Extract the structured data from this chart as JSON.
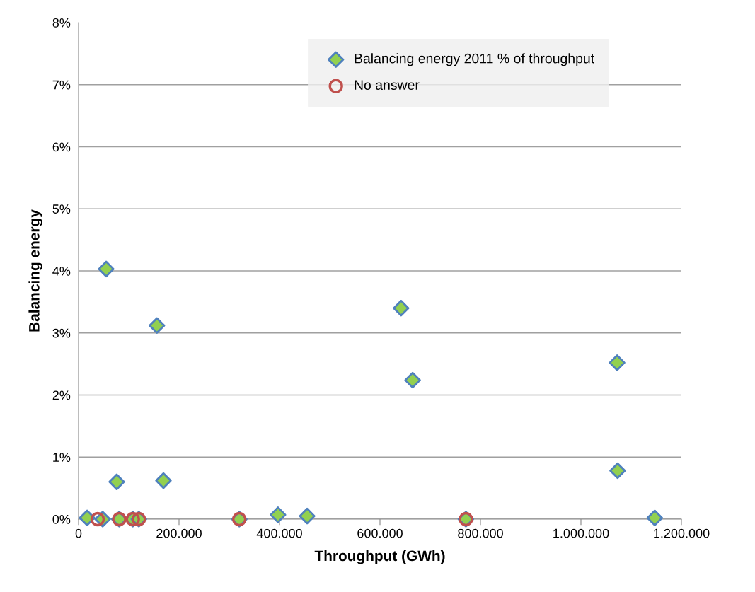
{
  "chart_data": {
    "type": "scatter",
    "xlabel": "Throughput (GWh)",
    "ylabel": "Balancing energy",
    "xlim": [
      0,
      1200000
    ],
    "ylim": [
      0,
      8
    ],
    "xticks": [
      0,
      {
        "value": 200000,
        "label": "200.000"
      },
      {
        "value": 400000,
        "label": "400.000"
      },
      {
        "value": 600000,
        "label": "600.000"
      },
      {
        "value": 800000,
        "label": "800.000"
      },
      {
        "value": 1000000,
        "label": "1.000.000"
      },
      {
        "value": 1200000,
        "label": "1.200.000"
      }
    ],
    "yticks": [
      {
        "value": 0,
        "label": "0%"
      },
      {
        "value": 1,
        "label": "1%"
      },
      {
        "value": 2,
        "label": "2%"
      },
      {
        "value": 3,
        "label": "3%"
      },
      {
        "value": 4,
        "label": "4%"
      },
      {
        "value": 5,
        "label": "5%"
      },
      {
        "value": 6,
        "label": "6%"
      },
      {
        "value": 7,
        "label": "7%"
      },
      {
        "value": 8,
        "label": "8%"
      }
    ],
    "grid": "y",
    "legend": "top right",
    "series": [
      {
        "name": "Balancing energy 2011 % of throughput",
        "color": "#92d050",
        "marker": "diamond",
        "x": [
          17000,
          48000,
          55000,
          76000,
          81000,
          108000,
          120000,
          156000,
          169000,
          320000,
          397000,
          455000,
          642000,
          665000,
          771000,
          1072000,
          1073000,
          1147000
        ],
        "values": [
          0.02,
          0,
          4.03,
          0.6,
          0,
          0,
          0,
          3.12,
          0.62,
          0,
          0.07,
          0.05,
          3.4,
          2.24,
          0,
          2.52,
          0.78,
          0.02
        ]
      },
      {
        "name": "No answer",
        "color": "#c0504d",
        "marker": "circle",
        "x": [
          38000,
          81000,
          108000,
          120000,
          320000,
          771000
        ],
        "values": [
          0,
          0,
          0,
          0,
          0,
          0
        ]
      }
    ]
  }
}
